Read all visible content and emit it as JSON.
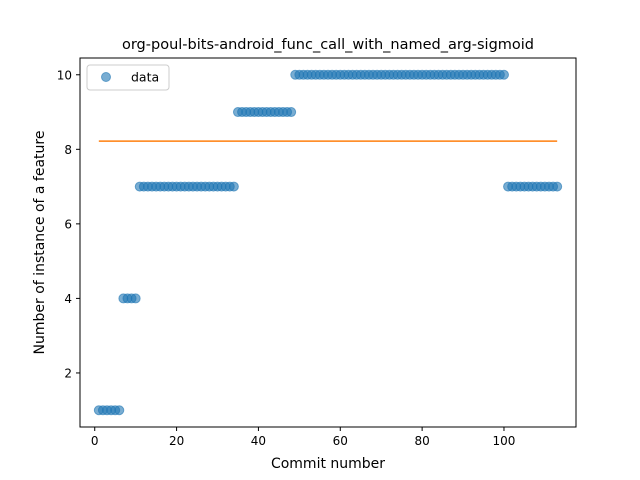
{
  "chart_data": {
    "type": "scatter",
    "title": "org-poul-bits-android_func_call_with_named_arg-sigmoid",
    "xlabel": "Commit number",
    "ylabel": "Number of instance of a feature",
    "xlim": [
      -3.6,
      117.6
    ],
    "ylim": [
      0.55,
      10.45
    ],
    "xticks": [
      0,
      20,
      40,
      60,
      80,
      100
    ],
    "yticks": [
      2,
      4,
      6,
      8,
      10
    ],
    "grid": false,
    "legend": {
      "placement": "top-left",
      "entries": [
        "data"
      ]
    },
    "series": [
      {
        "name": "data",
        "kind": "scatter",
        "color": "#1f77b4",
        "segments": [
          {
            "x_from": 1,
            "x_to": 6,
            "y": 1
          },
          {
            "x_from": 7,
            "x_to": 10,
            "y": 4
          },
          {
            "x_from": 11,
            "x_to": 34,
            "y": 7
          },
          {
            "x_from": 35,
            "x_to": 48,
            "y": 9
          },
          {
            "x_from": 49,
            "x_to": 100,
            "y": 10
          },
          {
            "x_from": 101,
            "x_to": 113,
            "y": 7
          }
        ]
      },
      {
        "kind": "line",
        "color": "#ff7f0e",
        "points": [
          [
            1,
            8.22
          ],
          [
            113,
            8.22
          ]
        ]
      }
    ]
  }
}
